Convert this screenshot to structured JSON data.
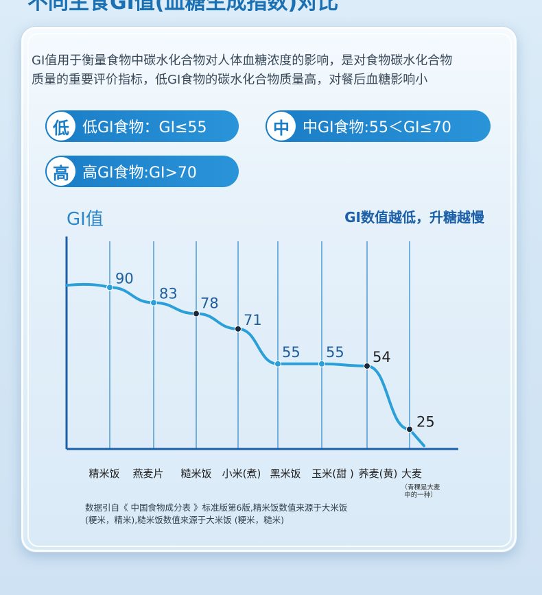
{
  "page": {
    "top_title": "不同主食GI值(血糖生成指数)对比"
  },
  "intro": {
    "line1": "GI值用于衡量食物中碳水化合物对人体血糖浓度的影响，是对食物碳水化合物",
    "line2": "质量的重要评价指标，低GI食物的碳水化合物质量高，对餐后血糖影响小"
  },
  "legend": {
    "low": {
      "badge": "低",
      "text": "低GI食物：GI≤55"
    },
    "mid": {
      "badge": "中",
      "text": "中GI食物:55＜GI≤70"
    },
    "high": {
      "badge": "高",
      "text": "高GI食物:GI>70"
    }
  },
  "chart_data": {
    "type": "line",
    "ylabel": "GI值",
    "annotation": "GI数值越低，升糖越慢",
    "categories": [
      "精米饭",
      "燕麦片",
      "糙米饭",
      "小米(煮)",
      "黑米饭",
      "玉米(甜 )",
      "荞麦(黄)",
      "大麦"
    ],
    "category_notes": [
      "",
      "",
      "",
      "",
      "",
      "",
      "",
      "（青稞是大麦中的一种）"
    ],
    "values": [
      90,
      83,
      78,
      71,
      55,
      55,
      54,
      25
    ],
    "value_labels": [
      "90",
      "83",
      "78",
      "71",
      "55",
      "55",
      "54",
      "25"
    ],
    "grid": "vertical",
    "colors": {
      "line": "#2a9fd8",
      "line_dark": "#1a6fb3",
      "axis": "#1b5fa8",
      "grid": "#2a86c8",
      "label": "#1f5e9a"
    }
  },
  "footnote": {
    "line1": "数据引自《 中国食物成分表 》标准版第6版,精米饭数值来源于大米饭",
    "line2": "(粳米，精米),糙米饭数值来源于大米饭 (粳米，糙米)"
  }
}
